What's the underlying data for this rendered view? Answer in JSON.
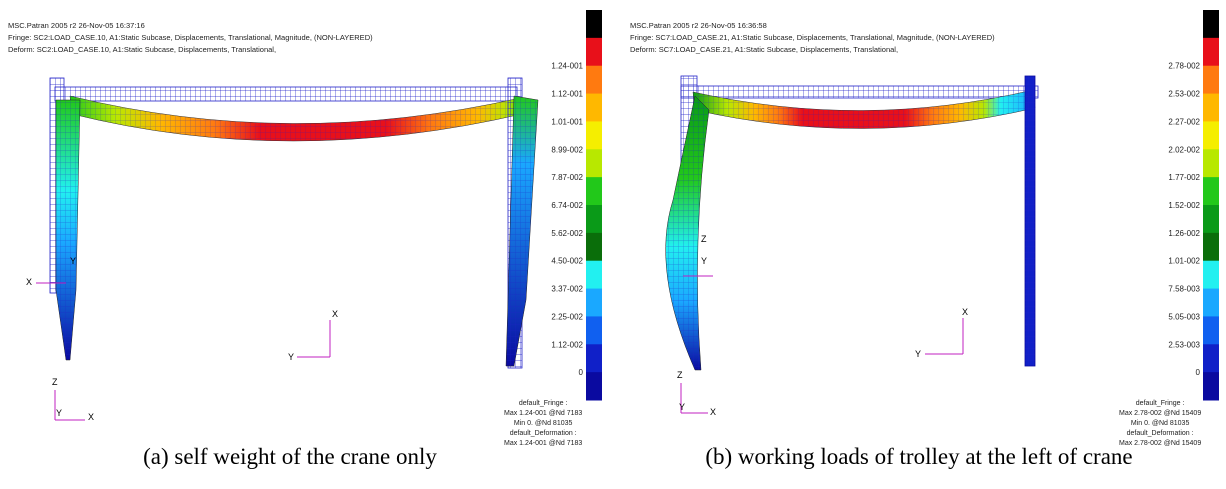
{
  "panels": [
    {
      "header": [
        "MSC.Patran 2005 r2 26-Nov-05 16:37:16",
        "Fringe: SC2:LOAD_CASE.10, A1:Static Subcase, Displacements, Translational, Magnitude, (NON-LAYERED)",
        "Deform: SC2:LOAD_CASE.10, A1:Static Subcase, Displacements, Translational,"
      ],
      "legend_values": [
        "1.24-001",
        "1.12-001",
        "1.01-001",
        "8.99-002",
        "7.87-002",
        "6.74-002",
        "5.62-002",
        "4.50-002",
        "3.37-002",
        "2.25-002",
        "1.12-002",
        "0"
      ],
      "footer": [
        "default_Fringe :",
        "Max 1.24-001 @Nd 7183",
        "Min 0. @Nd 81035",
        "default_Deformation :",
        "Max 1.24-001 @Nd 7183"
      ],
      "caption": "(a) self weight of the crane only"
    },
    {
      "header": [
        "MSC.Patran 2005 r2 26-Nov-05 16:36:58",
        "Fringe: SC7:LOAD_CASE.21, A1:Static Subcase, Displacements, Translational, Magnitude, (NON-LAYERED)",
        "Deform: SC7:LOAD_CASE.21, A1:Static Subcase, Displacements, Translational,"
      ],
      "legend_values": [
        "2.78-002",
        "2.53-002",
        "2.27-002",
        "2.02-002",
        "1.77-002",
        "1.52-002",
        "1.26-002",
        "1.01-002",
        "7.58-003",
        "5.05-003",
        "2.53-003",
        "0"
      ],
      "footer": [
        "default_Fringe :",
        "Max 2.78-002 @Nd 15409",
        "Min 0. @Nd 81035",
        "default_Deformation :",
        "Max 2.78-002 @Nd 15409"
      ],
      "caption": "(b) working loads of trolley at the left of crane"
    }
  ],
  "fringe_colors": [
    "#000000",
    "#e8101a",
    "#ff7a10",
    "#ffb800",
    "#f5ee00",
    "#b8e800",
    "#22c81a",
    "#0a9a18",
    "#0a6e0a",
    "#22f0f0",
    "#1aa8ff",
    "#1060f0",
    "#1020c8",
    "#0a0aa0"
  ],
  "axis_labels": {
    "x": "X",
    "y": "Y",
    "z": "Z"
  }
}
